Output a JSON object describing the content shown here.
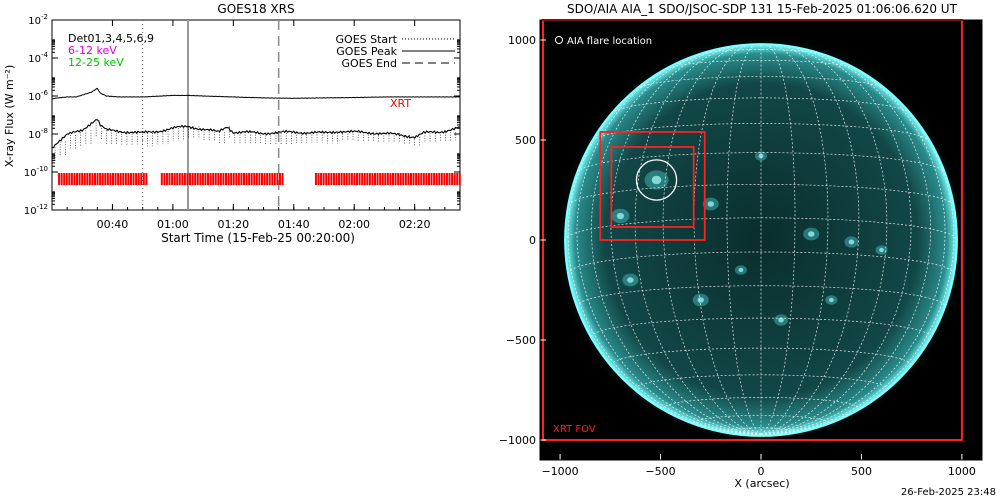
{
  "chart_data": [
    {
      "type": "line",
      "title": "GOES18 XRS",
      "xlabel": "Start Time (15-Feb-25 00:20:00)",
      "ylabel": "X-ray Flux (W m⁻²)",
      "ylog": true,
      "ylim_exp": [
        -12,
        -2
      ],
      "y_tick_exps": [
        -12,
        -10,
        -8,
        -6,
        -4,
        -2
      ],
      "xlim_min": [
        20,
        155
      ],
      "x_ticks": [
        {
          "t": 40,
          "label": "00:40"
        },
        {
          "t": 60,
          "label": "01:00"
        },
        {
          "t": 80,
          "label": "01:20"
        },
        {
          "t": 100,
          "label": "01:40"
        },
        {
          "t": 120,
          "label": "02:00"
        },
        {
          "t": 140,
          "label": "02:20"
        }
      ],
      "legend_left": [
        {
          "label": "Det01,3,4,5,6,9",
          "color": "#000000"
        },
        {
          "label": "6-12 keV",
          "color": "#e000e0"
        },
        {
          "label": "12-25 keV",
          "color": "#00c000"
        }
      ],
      "legend_right": [
        {
          "label": "GOES Start",
          "style": "dotted"
        },
        {
          "label": "GOES Peak",
          "style": "solid"
        },
        {
          "label": "GOES End",
          "style": "dashed"
        }
      ],
      "event_lines_min": {
        "start": 50,
        "peak": 65,
        "end": 95
      },
      "xrt_label": "XRT",
      "xrt_coverage_min": [
        [
          22,
          51
        ],
        [
          56,
          96
        ],
        [
          107,
          155
        ]
      ],
      "series": [
        {
          "name": "long",
          "values_log10": [
            [
              20,
              -6.15
            ],
            [
              22,
              -6.1
            ],
            [
              25,
              -6.05
            ],
            [
              28,
              -6.05
            ],
            [
              30,
              -5.95
            ],
            [
              33,
              -5.8
            ],
            [
              35,
              -5.6
            ],
            [
              36,
              -5.85
            ],
            [
              38,
              -6.0
            ],
            [
              42,
              -6.05
            ],
            [
              50,
              -6.05
            ],
            [
              60,
              -5.97
            ],
            [
              65,
              -5.97
            ],
            [
              70,
              -6.0
            ],
            [
              80,
              -6.05
            ],
            [
              90,
              -6.1
            ],
            [
              100,
              -6.12
            ],
            [
              110,
              -6.1
            ],
            [
              120,
              -6.08
            ],
            [
              130,
              -6.05
            ],
            [
              140,
              -6.05
            ],
            [
              150,
              -6.05
            ],
            [
              155,
              -6.05
            ]
          ]
        },
        {
          "name": "short",
          "values_log10": [
            [
              20,
              -8.7
            ],
            [
              22,
              -8.4
            ],
            [
              25,
              -8.05
            ],
            [
              28,
              -7.9
            ],
            [
              30,
              -7.8
            ],
            [
              33,
              -7.4
            ],
            [
              35,
              -7.2
            ],
            [
              36,
              -7.55
            ],
            [
              38,
              -7.8
            ],
            [
              42,
              -7.85
            ],
            [
              50,
              -7.95
            ],
            [
              55,
              -7.85
            ],
            [
              60,
              -7.7
            ],
            [
              65,
              -7.6
            ],
            [
              70,
              -7.75
            ],
            [
              75,
              -7.9
            ],
            [
              78,
              -7.6
            ],
            [
              80,
              -7.9
            ],
            [
              90,
              -7.95
            ],
            [
              100,
              -7.9
            ],
            [
              110,
              -7.95
            ],
            [
              115,
              -7.85
            ],
            [
              120,
              -7.9
            ],
            [
              128,
              -7.95
            ],
            [
              135,
              -8.05
            ],
            [
              140,
              -8.15
            ],
            [
              143,
              -7.95
            ],
            [
              148,
              -7.9
            ],
            [
              155,
              -7.65
            ]
          ]
        }
      ],
      "axis_color": "#000000"
    },
    {
      "type": "scatter",
      "title": "SDO/AIA AIA_1 SDO/JSOC-SDP 131 15-Feb-2025 01:06:06.620 UT",
      "xlabel": "X (arcsec)",
      "ylabel": "",
      "xlim": [
        -1100,
        1100
      ],
      "ylim": [
        -1100,
        1100
      ],
      "x_ticks": [
        -1000,
        -500,
        0,
        500,
        1000
      ],
      "y_ticks": [
        -1000,
        -500,
        0,
        500,
        1000
      ],
      "solar_radius_arcsec": 975,
      "legend_flare": "AIA flare location",
      "flare_location": {
        "x": -520,
        "y": 300,
        "r": 100
      },
      "xrt_fov_label": "XRT FOV",
      "xrt_fov": {
        "x": [
          -1085,
          1000
        ],
        "y": [
          -1000,
          1100
        ]
      },
      "xrt_boxes": [
        {
          "x": [
            -800,
            -280
          ],
          "y": [
            0,
            540
          ]
        },
        {
          "x": [
            -745,
            -335
          ],
          "y": [
            65,
            465
          ]
        }
      ],
      "colors": {
        "disk": "#0d3b3b",
        "limb": "#7fffff",
        "grid": "#ffffff",
        "box": "#ff2020"
      }
    }
  ],
  "footer_timestamp": "26-Feb-2025 23:48"
}
